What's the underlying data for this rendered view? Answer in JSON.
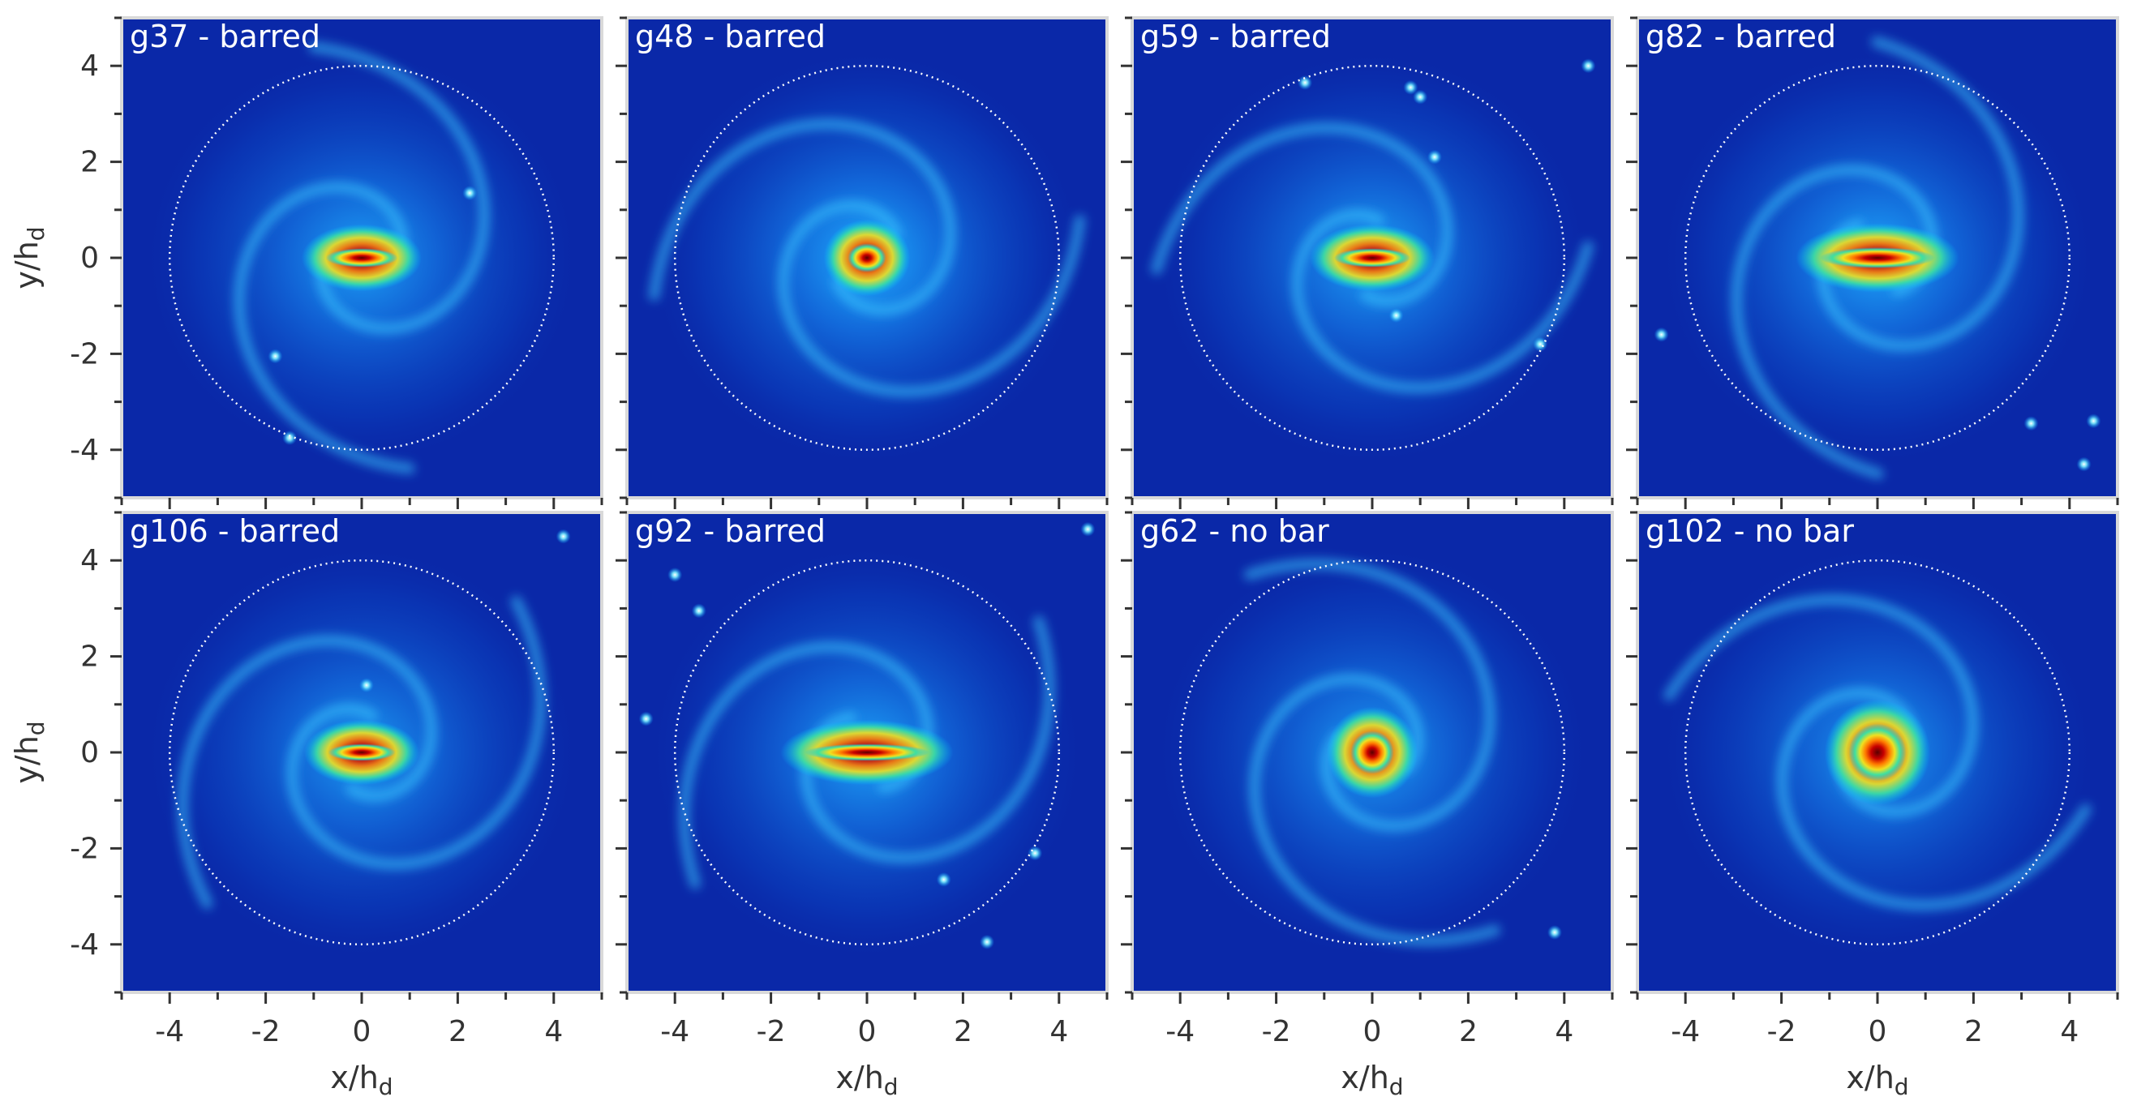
{
  "chart_data": {
    "type": "heatmap",
    "description_axes": {
      "xlabel_main": "x/h",
      "xlabel_sub": "d",
      "ylabel_main": "y/h",
      "ylabel_sub": "d",
      "xlim": [
        -5,
        5
      ],
      "ylim": [
        -5,
        5
      ],
      "major_ticks": [
        -4,
        -2,
        0,
        2,
        4
      ],
      "minor_ticks": [
        -5,
        -3,
        -1,
        1,
        3,
        5
      ],
      "circle_radius": 4
    },
    "panels": [
      {
        "title": "g37 - barred",
        "bar": true,
        "bar_half_length": 0.75,
        "bar_half_width": 0.2,
        "disk_intensity": 0.55,
        "arms": 2,
        "arm_winding": 0.35,
        "clumps": [
          [
            2.25,
            1.35
          ],
          [
            -1.8,
            -2.05
          ],
          [
            -1.5,
            -3.75
          ]
        ]
      },
      {
        "title": "g48 - barred",
        "bar": true,
        "bar_half_length": 0.4,
        "bar_half_width": 0.3,
        "disk_intensity": 0.65,
        "arms": 2,
        "arm_winding": 0.3,
        "clumps": []
      },
      {
        "title": "g59 - barred",
        "bar": true,
        "bar_half_length": 0.8,
        "bar_half_width": 0.2,
        "disk_intensity": 0.55,
        "arms": 2,
        "arm_winding": 0.35,
        "clumps": [
          [
            -1.4,
            3.65
          ],
          [
            0.8,
            3.55
          ],
          [
            1.0,
            3.35
          ],
          [
            1.3,
            2.1
          ],
          [
            0.5,
            -1.2
          ],
          [
            4.5,
            4.0
          ],
          [
            3.5,
            -1.8
          ]
        ]
      },
      {
        "title": "g82 - barred",
        "bar": true,
        "bar_half_length": 1.2,
        "bar_half_width": 0.22,
        "disk_intensity": 0.6,
        "arms": 2,
        "arm_winding": 0.3,
        "clumps": [
          [
            -4.5,
            -1.6
          ],
          [
            3.2,
            -3.45
          ],
          [
            4.3,
            -4.3
          ],
          [
            4.5,
            -3.4
          ]
        ]
      },
      {
        "title": "g106 - barred",
        "bar": true,
        "bar_half_length": 0.7,
        "bar_half_width": 0.18,
        "disk_intensity": 0.5,
        "arms": 2,
        "arm_winding": 0.3,
        "clumps": [
          [
            0.1,
            1.4
          ],
          [
            4.2,
            4.5
          ]
        ]
      },
      {
        "title": "g92 - barred",
        "bar": true,
        "bar_half_length": 1.3,
        "bar_half_width": 0.18,
        "disk_intensity": 0.55,
        "arms": 2,
        "arm_winding": 0.35,
        "clumps": [
          [
            -4.6,
            0.7
          ],
          [
            -4.0,
            3.7
          ],
          [
            -3.5,
            2.95
          ],
          [
            3.5,
            -2.1
          ],
          [
            1.6,
            -2.65
          ],
          [
            2.5,
            -3.95
          ],
          [
            4.6,
            4.65
          ]
        ]
      },
      {
        "title": "g62 - no bar",
        "bar": false,
        "bar_half_length": 0.45,
        "bar_half_width": 0.45,
        "disk_intensity": 0.5,
        "arms": 2,
        "arm_winding": 0.3,
        "clumps": [
          [
            3.8,
            -3.75
          ]
        ]
      },
      {
        "title": "g102 - no bar",
        "bar": false,
        "bar_half_length": 0.6,
        "bar_half_width": 0.6,
        "disk_intensity": 0.5,
        "arms": 2,
        "arm_winding": 0.3,
        "clumps": []
      }
    ]
  },
  "colors": {
    "frame": "#d9d9d9",
    "circle": "#ffffff",
    "background": "#0a28a8"
  }
}
